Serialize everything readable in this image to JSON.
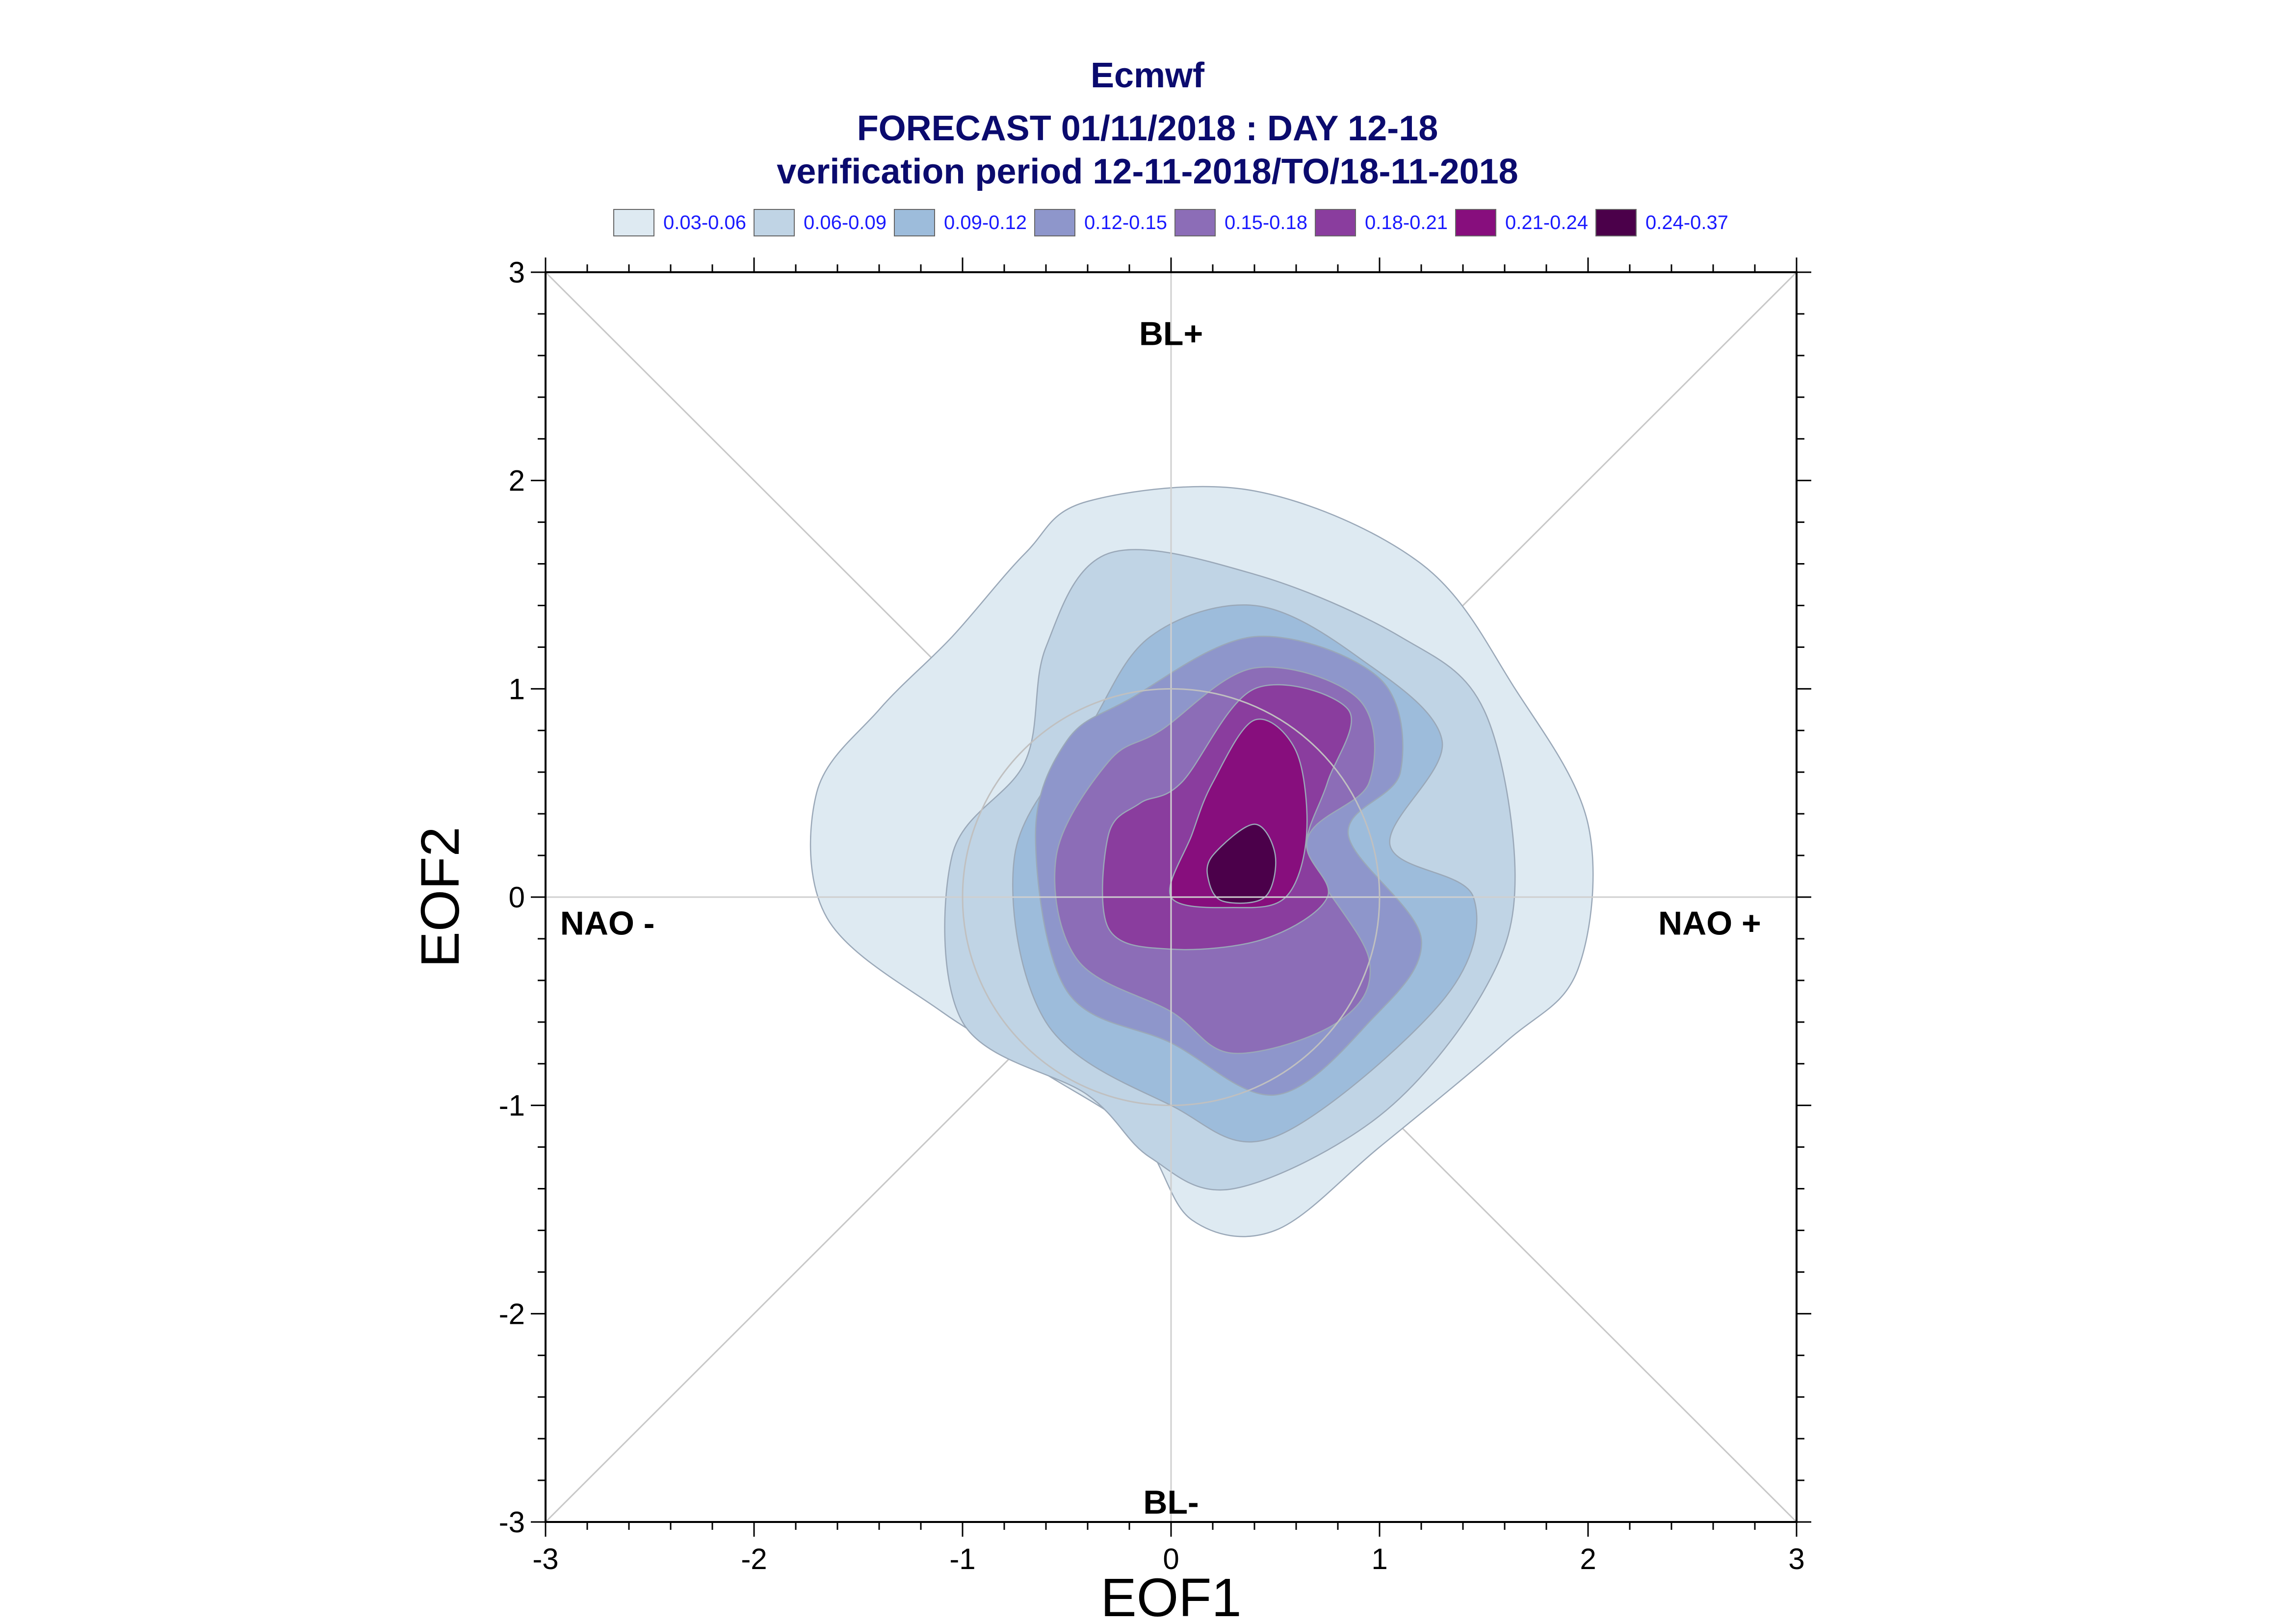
{
  "chart_data": {
    "type": "contour",
    "title": "Ecmwf",
    "subtitle": "FORECAST 01/11/2018 : DAY 12-18",
    "subtitle2": "verification period 12-11-2018/TO/18-11-2018",
    "xlabel": "EOF1",
    "ylabel": "EOF2",
    "xlim": [
      -3,
      3
    ],
    "ylim": [
      -3,
      3
    ],
    "xticks": [
      "-3",
      "-2",
      "-1",
      "0",
      "1",
      "2",
      "3"
    ],
    "yticks": [
      "-3",
      "-2",
      "-1",
      "0",
      "1",
      "2",
      "3"
    ],
    "regime_labels": {
      "top": "BL+",
      "bottom": "BL-",
      "left": "NAO -",
      "right": "NAO +"
    },
    "reference_circle_radius": 1,
    "legend": [
      {
        "label": "0.03-0.06",
        "color": "#deeaf2"
      },
      {
        "label": "0.06-0.09",
        "color": "#c0d4e5"
      },
      {
        "label": "0.09-0.12",
        "color": "#9dbcdb"
      },
      {
        "label": "0.12-0.15",
        "color": "#8e96cb"
      },
      {
        "label": "0.15-0.18",
        "color": "#8c6db7"
      },
      {
        "label": "0.18-0.21",
        "color": "#8a3d9e"
      },
      {
        "label": "0.21-0.24",
        "color": "#870e7d"
      },
      {
        "label": "0.24-0.37",
        "color": "#4b004a"
      }
    ],
    "contours": [
      {
        "level": "0.03-0.06",
        "color": "#deeaf2",
        "points": [
          [
            -0.4,
            1.9
          ],
          [
            0.4,
            1.95
          ],
          [
            1.2,
            1.6
          ],
          [
            1.65,
            1.0
          ],
          [
            2.0,
            0.35
          ],
          [
            1.95,
            -0.35
          ],
          [
            1.6,
            -0.7
          ],
          [
            1.0,
            -1.2
          ],
          [
            0.5,
            -1.6
          ],
          [
            0.1,
            -1.55
          ],
          [
            -0.15,
            -1.15
          ],
          [
            -0.6,
            -0.85
          ],
          [
            -1.1,
            -0.55
          ],
          [
            -1.65,
            -0.1
          ],
          [
            -1.7,
            0.5
          ],
          [
            -1.4,
            0.9
          ],
          [
            -1.05,
            1.25
          ],
          [
            -0.7,
            1.65
          ]
        ]
      },
      {
        "level": "0.06-0.09",
        "color": "#c0d4e5",
        "points": [
          [
            -0.3,
            1.65
          ],
          [
            0.4,
            1.55
          ],
          [
            1.1,
            1.25
          ],
          [
            1.5,
            0.9
          ],
          [
            1.65,
            0.1
          ],
          [
            1.5,
            -0.45
          ],
          [
            1.0,
            -1.05
          ],
          [
            0.3,
            -1.4
          ],
          [
            -0.1,
            -1.25
          ],
          [
            -0.4,
            -0.95
          ],
          [
            -1.0,
            -0.6
          ],
          [
            -1.05,
            0.2
          ],
          [
            -0.7,
            0.65
          ],
          [
            -0.6,
            1.2
          ]
        ]
      },
      {
        "level": "0.09-0.12",
        "color": "#9dbcdb",
        "points": [
          [
            -0.1,
            1.25
          ],
          [
            0.4,
            1.4
          ],
          [
            0.9,
            1.15
          ],
          [
            1.3,
            0.75
          ],
          [
            1.05,
            0.25
          ],
          [
            1.45,
            0.0
          ],
          [
            1.3,
            -0.5
          ],
          [
            0.5,
            -1.15
          ],
          [
            0.0,
            -1.0
          ],
          [
            -0.6,
            -0.6
          ],
          [
            -0.75,
            0.2
          ],
          [
            -0.4,
            0.8
          ]
        ]
      },
      {
        "level": "0.12-0.15",
        "color": "#8e96cb",
        "points": [
          [
            -0.2,
            0.95
          ],
          [
            0.4,
            1.25
          ],
          [
            1.0,
            1.05
          ],
          [
            1.1,
            0.6
          ],
          [
            0.85,
            0.3
          ],
          [
            1.2,
            -0.2
          ],
          [
            0.95,
            -0.6
          ],
          [
            0.5,
            -0.95
          ],
          [
            0.0,
            -0.7
          ],
          [
            -0.5,
            -0.45
          ],
          [
            -0.65,
            0.3
          ],
          [
            -0.5,
            0.75
          ]
        ]
      },
      {
        "level": "0.15-0.18",
        "color": "#8c6db7",
        "points": [
          [
            -0.05,
            0.8
          ],
          [
            0.4,
            1.1
          ],
          [
            0.9,
            0.95
          ],
          [
            0.95,
            0.55
          ],
          [
            0.65,
            0.25
          ],
          [
            0.95,
            -0.3
          ],
          [
            0.8,
            -0.6
          ],
          [
            0.3,
            -0.75
          ],
          [
            0.0,
            -0.55
          ],
          [
            -0.45,
            -0.3
          ],
          [
            -0.55,
            0.2
          ],
          [
            -0.3,
            0.65
          ]
        ]
      },
      {
        "level": "0.18-0.21",
        "color": "#8a3d9e",
        "points": [
          [
            0.05,
            0.55
          ],
          [
            0.4,
            1.0
          ],
          [
            0.85,
            0.9
          ],
          [
            0.75,
            0.55
          ],
          [
            0.65,
            0.25
          ],
          [
            0.75,
            0.0
          ],
          [
            0.45,
            -0.2
          ],
          [
            0.0,
            -0.25
          ],
          [
            -0.3,
            -0.15
          ],
          [
            -0.3,
            0.3
          ],
          [
            -0.15,
            0.45
          ]
        ]
      },
      {
        "level": "0.21-0.24",
        "color": "#870e7d",
        "points": [
          [
            0.2,
            0.55
          ],
          [
            0.4,
            0.85
          ],
          [
            0.6,
            0.7
          ],
          [
            0.65,
            0.3
          ],
          [
            0.55,
            0.0
          ],
          [
            0.3,
            -0.05
          ],
          [
            0.0,
            0.0
          ],
          [
            0.1,
            0.3
          ]
        ]
      },
      {
        "level": "0.24-0.37",
        "color": "#4b004a",
        "points": [
          [
            0.2,
            0.2
          ],
          [
            0.4,
            0.35
          ],
          [
            0.5,
            0.2
          ],
          [
            0.45,
            0.0
          ],
          [
            0.25,
            -0.02
          ],
          [
            0.18,
            0.08
          ]
        ]
      }
    ]
  }
}
